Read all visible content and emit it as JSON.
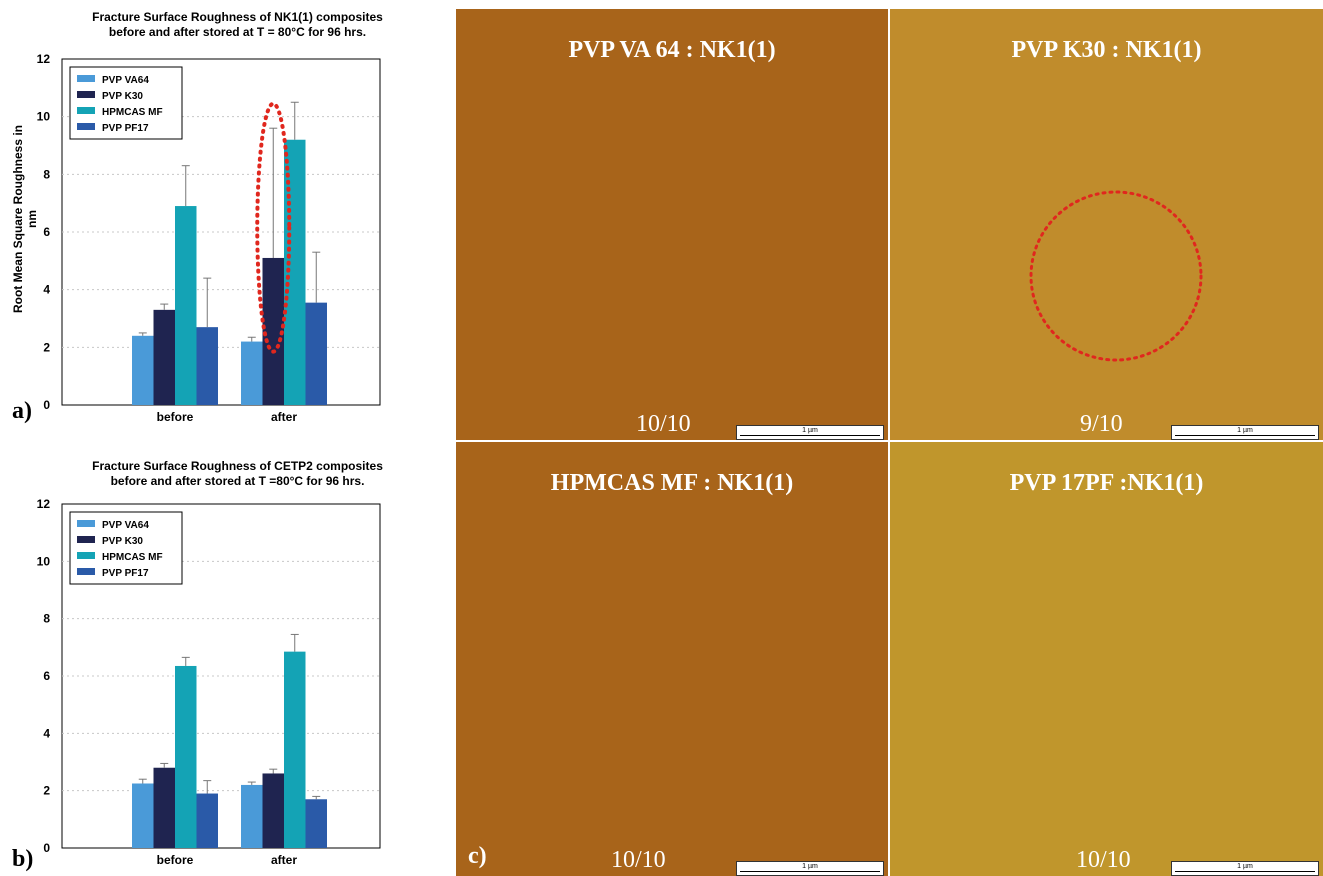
{
  "panel_letters": {
    "a": "a)",
    "b": "b)",
    "c": "c)"
  },
  "chart_data": [
    {
      "type": "bar",
      "title": "Fracture Surface Roughness of NK1(1) composites\nbefore and after stored at T = 80°C for 96 hrs.",
      "title_line1": "Fracture Surface Roughness of NK1(1) composites",
      "title_line2": "before and after stored at T = 80°C for 96 hrs.",
      "ylabel": "Root Mean Square Roughness in nm",
      "xlabel": "",
      "categories": [
        "before",
        "after"
      ],
      "ylim": [
        0,
        12
      ],
      "yticks": [
        "0",
        "2",
        "4",
        "6",
        "8",
        "10",
        "12"
      ],
      "grid": true,
      "legend_position": "top-left",
      "series": [
        {
          "name": "PVP VA64",
          "color": "#4a9ad8",
          "values": [
            2.4,
            2.2
          ],
          "errors": [
            0.1,
            0.15
          ]
        },
        {
          "name": "PVP K30",
          "color": "#1f2450",
          "values": [
            3.3,
            5.1
          ],
          "errors": [
            0.2,
            4.5
          ]
        },
        {
          "name": "HPMCAS MF",
          "color": "#14a3b5",
          "values": [
            6.9,
            9.2
          ],
          "errors": [
            1.4,
            1.3
          ]
        },
        {
          "name": "PVP PF17",
          "color": "#2a5aa8",
          "values": [
            2.7,
            3.55
          ],
          "errors": [
            1.7,
            1.75
          ]
        }
      ],
      "highlight": {
        "category": "after",
        "series": "PVP K30",
        "style": "red dotted ellipse"
      }
    },
    {
      "type": "bar",
      "title": "Fracture Surface Roughness of CETP2 composites\nbefore and after stored at T =80°C for 96 hrs.",
      "title_line1": "Fracture Surface Roughness of CETP2 composites",
      "title_line2": "before and after stored at T =80°C for 96 hrs.",
      "ylabel": "",
      "xlabel": "",
      "categories": [
        "before",
        "after"
      ],
      "ylim": [
        0,
        12
      ],
      "yticks": [
        "0",
        "2",
        "4",
        "6",
        "8",
        "10",
        "12"
      ],
      "grid": true,
      "legend_position": "top-left",
      "series": [
        {
          "name": "PVP VA64",
          "color": "#4a9ad8",
          "values": [
            2.25,
            2.2
          ],
          "errors": [
            0.15,
            0.1
          ]
        },
        {
          "name": "PVP K30",
          "color": "#1f2450",
          "values": [
            2.8,
            2.6
          ],
          "errors": [
            0.15,
            0.15
          ]
        },
        {
          "name": "HPMCAS MF",
          "color": "#14a3b5",
          "values": [
            6.35,
            6.85
          ],
          "errors": [
            0.3,
            0.6
          ]
        },
        {
          "name": "PVP PF17",
          "color": "#2a5aa8",
          "values": [
            1.9,
            1.7
          ],
          "errors": [
            0.45,
            0.1
          ]
        }
      ]
    }
  ],
  "afm_images": [
    {
      "label": "PVP VA 64 : NK1(1)",
      "score": "10/10",
      "scale": "1 µm",
      "tone": "#a8641a",
      "highlight": false
    },
    {
      "label": "PVP K30 : NK1(1)",
      "score": "9/10",
      "scale": "1 µm",
      "tone": "#c08c2c",
      "highlight": true
    },
    {
      "label": "HPMCAS MF : NK1(1)",
      "score": "",
      "scale": "1 µm",
      "tone": "#a8641a",
      "highlight": false
    },
    {
      "label": "PVP 17PF :NK1(1)",
      "score": "10/10",
      "scale": "1 µm",
      "tone": "#c0962c",
      "highlight": false
    }
  ],
  "afm_bottom_left_score": "10/10"
}
